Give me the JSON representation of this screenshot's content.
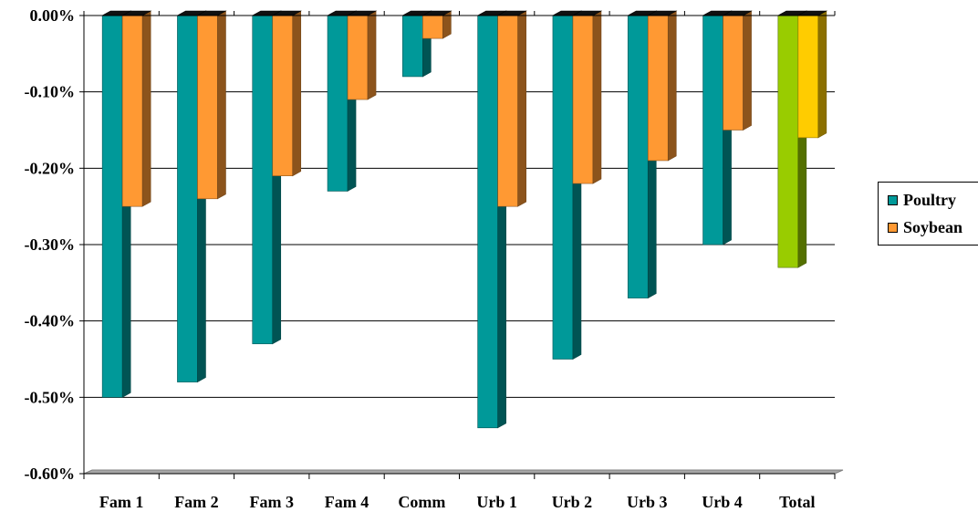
{
  "chart_data": {
    "type": "bar",
    "title": "",
    "xlabel": "",
    "ylabel": "",
    "categories": [
      "Fam 1",
      "Fam 2",
      "Fam 3",
      "Fam 4",
      "Comm",
      "Urb 1",
      "Urb 2",
      "Urb 3",
      "Urb 4",
      "Total"
    ],
    "series": [
      {
        "name": "Poultry",
        "values": [
          -0.5,
          -0.48,
          -0.43,
          -0.23,
          -0.08,
          -0.54,
          -0.45,
          -0.37,
          -0.3,
          -0.33
        ]
      },
      {
        "name": "Soybean",
        "values": [
          -0.25,
          -0.24,
          -0.21,
          -0.11,
          -0.03,
          -0.25,
          -0.22,
          -0.19,
          -0.15,
          -0.16
        ]
      }
    ],
    "ylim": [
      -0.6,
      0.0
    ],
    "y_ticks": [
      0.0,
      -0.1,
      -0.2,
      -0.3,
      -0.4,
      -0.5,
      -0.6
    ],
    "y_tick_labels": [
      "0.00%",
      "-0.10%",
      "-0.20%",
      "-0.30%",
      "-0.40%",
      "-0.50%",
      "-0.60%"
    ],
    "grid": true,
    "legend_position": "right",
    "style": "3d-column",
    "colors": {
      "Poultry": "#009999",
      "Soybean": "#ff9933",
      "Total_Poultry": "#99cc00",
      "Total_Soybean": "#ffcc00"
    }
  },
  "legend": {
    "items": [
      {
        "label": "Poultry",
        "color": "#009999"
      },
      {
        "label": "Soybean",
        "color": "#ff9933"
      }
    ]
  }
}
